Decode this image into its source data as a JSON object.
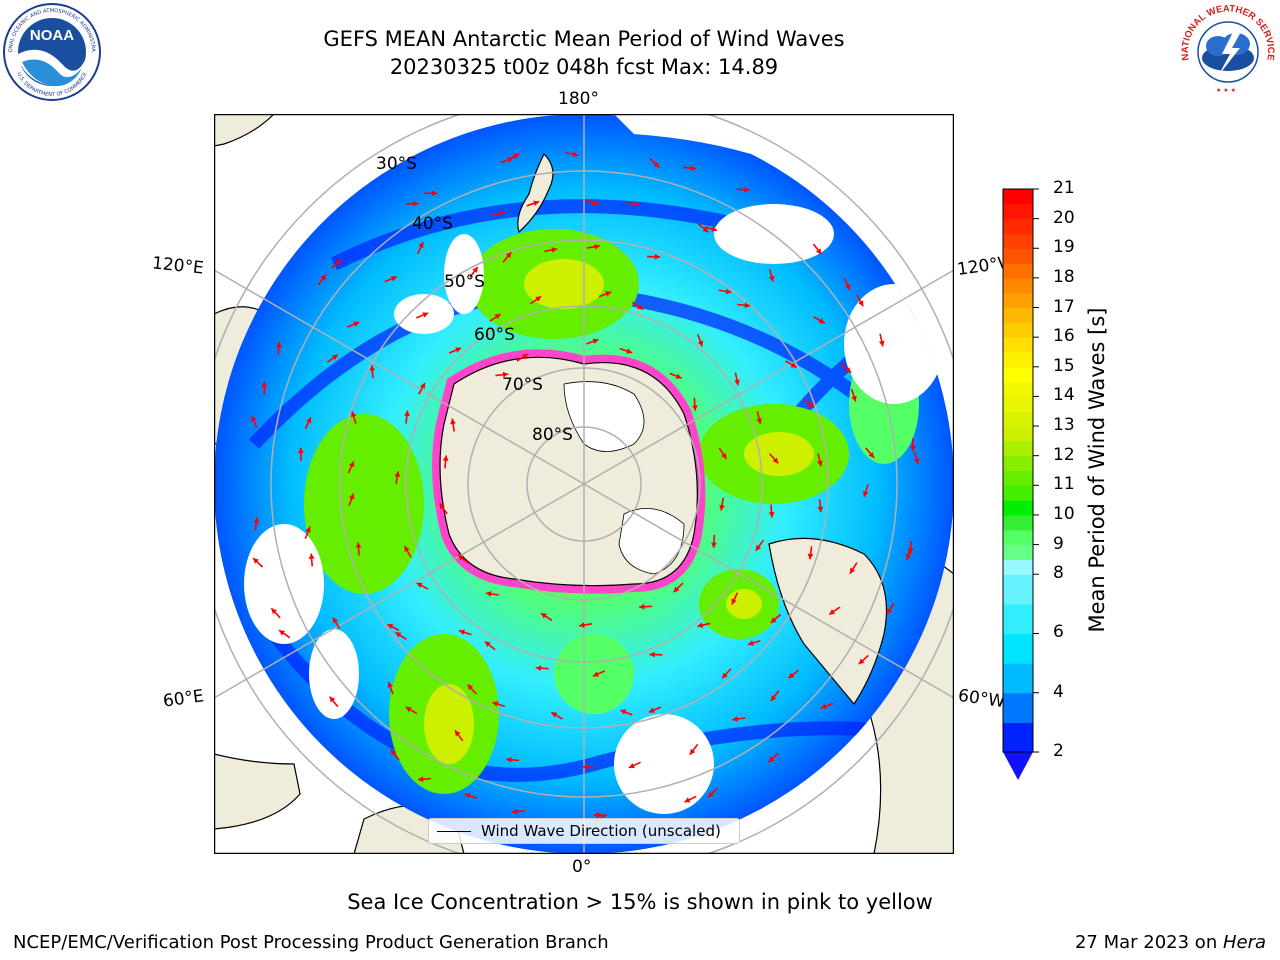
{
  "title": {
    "line1": "GEFS MEAN Antarctic Mean Period of Wind Waves",
    "line2": "20230325 t00z 048h fcst   Max: 14.89"
  },
  "logos": {
    "left": "NOAA",
    "left_ring_top": "NATIONAL OCEANIC AND ATMOSPHERIC ADMINISTRATION",
    "left_ring_bottom": "U.S. DEPARTMENT OF COMMERCE",
    "right_ring": "NATIONAL WEATHER SERVICE"
  },
  "map": {
    "projection": "south-polar-stereographic",
    "longitude_labels": {
      "top": "180°",
      "bottom": "0°",
      "upper_left": "120°E",
      "upper_right": "120°W",
      "lower_left": "60°E",
      "lower_right": "60°W"
    },
    "latitude_labels": [
      "30°S",
      "40°S",
      "50°S",
      "60°S",
      "70°S",
      "80°S"
    ],
    "legend_label": "Wind Wave Direction (unscaled)",
    "colors": {
      "land": "#efecdc",
      "ocean_blank": "#ffffff",
      "ice": "#ff44cc",
      "arrow": "#ff0000",
      "grid": "#b0b0b0"
    }
  },
  "colorbar": {
    "label": "Mean Period of Wind Waves [s]",
    "ticks": [
      "21",
      "20",
      "19",
      "18",
      "17",
      "16",
      "15",
      "14",
      "13",
      "12",
      "11",
      "10",
      "9",
      "8",
      "6",
      "4",
      "2"
    ],
    "levels": [
      2,
      3,
      4,
      5,
      6,
      7,
      8,
      8.5,
      9,
      9.5,
      10,
      10.5,
      11,
      11.5,
      12,
      12.5,
      13,
      13.5,
      14,
      14.5,
      15,
      15.5,
      16,
      16.5,
      17,
      17.5,
      18,
      18.5,
      19,
      19.5,
      20,
      20.5,
      21
    ],
    "colors": [
      "#0022ff",
      "#0077ff",
      "#00bbff",
      "#00e5ff",
      "#33eeff",
      "#66f3ff",
      "#99f8ff",
      "#66ff88",
      "#55ff66",
      "#33ee33",
      "#00ee00",
      "#44ee00",
      "#66ee00",
      "#88ee00",
      "#aaee00",
      "#ccf000",
      "#d8f200",
      "#e8f500",
      "#f2f800",
      "#ffff00",
      "#fff000",
      "#ffe000",
      "#ffcc00",
      "#ffb800",
      "#ffa000",
      "#ff8800",
      "#ff7000",
      "#ff5500",
      "#ff4000",
      "#ff2a00",
      "#ff1500",
      "#ff0000"
    ],
    "extend_color": "#1111ff"
  },
  "notes": {
    "sea_ice": "Sea Ice Concentration > 15% is shown in pink to yellow",
    "credit": "NCEP/EMC/Verification Post Processing Product Generation Branch",
    "date": "27 Mar 2023 on ",
    "machine": "Hera"
  }
}
